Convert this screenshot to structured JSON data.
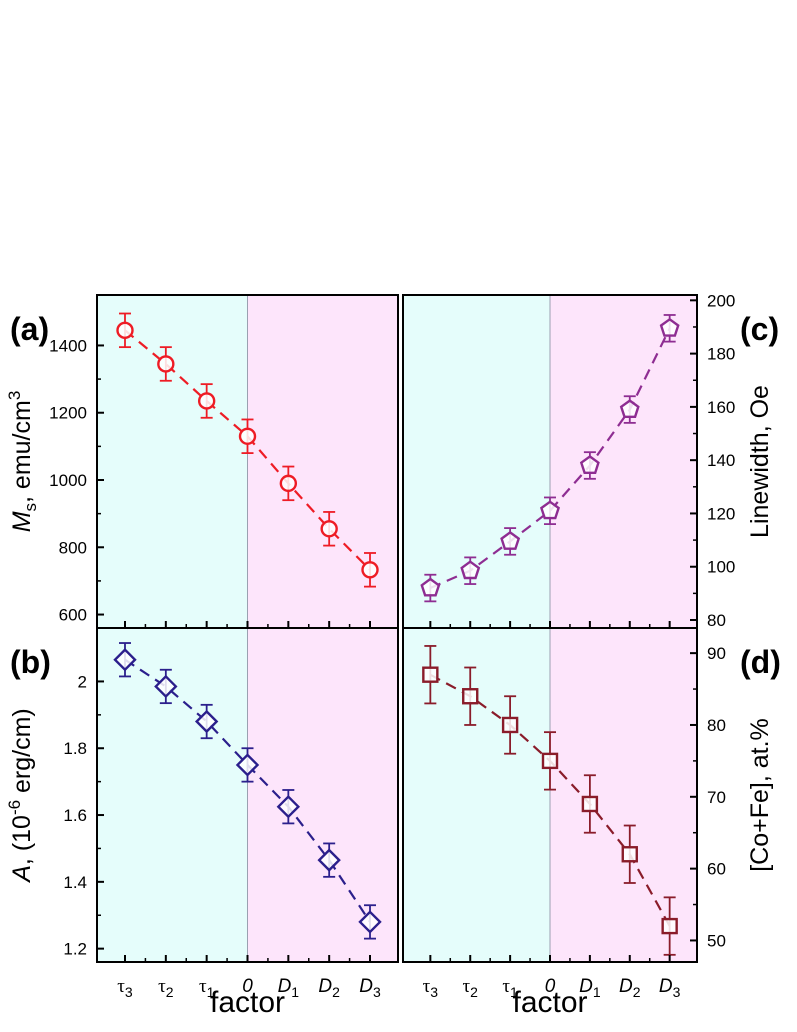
{
  "chart_data": [
    {
      "panel": "(a)",
      "type": "scatter",
      "x_categories": [
        "τ3",
        "τ2",
        "τ1",
        "0",
        "D1",
        "D2",
        "D3"
      ],
      "xlabel": "",
      "ylabel": "M_s, emu/cm^3",
      "ylim": [
        560,
        1550
      ],
      "yticks": [
        600,
        800,
        1000,
        1200,
        1400
      ],
      "series": [
        {
          "values": [
            1445,
            1345,
            1235,
            1130,
            990,
            855,
            733
          ],
          "errors": [
            50,
            50,
            50,
            50,
            50,
            50,
            50
          ]
        }
      ],
      "marker": "circle",
      "color": "#ee1c25",
      "regions": [
        {
          "from": "τ3",
          "to": "0",
          "color": "#e5fdfb"
        },
        {
          "from": "0",
          "to": "D3",
          "color": "#fde5fb"
        }
      ]
    },
    {
      "panel": "(b)",
      "type": "scatter",
      "x_categories": [
        "τ3",
        "τ2",
        "τ1",
        "0",
        "D1",
        "D2",
        "D3"
      ],
      "xlabel": "factor",
      "ylabel": "A, (10^-6 erg/cm)",
      "ylim": [
        1.16,
        2.16
      ],
      "yticks": [
        1.2,
        1.4,
        1.6,
        1.8,
        2.0
      ],
      "series": [
        {
          "values": [
            2.065,
            1.985,
            1.88,
            1.75,
            1.625,
            1.465,
            1.28
          ],
          "errors": [
            0.05,
            0.05,
            0.05,
            0.05,
            0.05,
            0.05,
            0.05
          ]
        }
      ],
      "marker": "diamond",
      "color": "#2b1f8c",
      "regions": [
        {
          "from": "τ3",
          "to": "0",
          "color": "#e5fdfb"
        },
        {
          "from": "0",
          "to": "D3",
          "color": "#fde5fb"
        }
      ]
    },
    {
      "panel": "(c)",
      "type": "scatter",
      "x_categories": [
        "τ3",
        "τ2",
        "τ1",
        "0",
        "D1",
        "D2",
        "D3"
      ],
      "xlabel": "",
      "ylabel": "Linewidth, Oe",
      "ylim": [
        77,
        202
      ],
      "yticks": [
        80,
        100,
        120,
        140,
        160,
        180,
        200
      ],
      "series": [
        {
          "values": [
            92,
            98.5,
            109.5,
            121,
            138,
            159,
            189.5
          ],
          "errors": [
            5,
            5,
            5,
            5,
            5,
            5,
            5
          ]
        }
      ],
      "marker": "pentagon",
      "color": "#8e2d92",
      "regions": [
        {
          "from": "τ3",
          "to": "0",
          "color": "#e5fdfb"
        },
        {
          "from": "0",
          "to": "D3",
          "color": "#fde5fb"
        }
      ]
    },
    {
      "panel": "(d)",
      "type": "scatter",
      "x_categories": [
        "τ3",
        "τ2",
        "τ1",
        "0",
        "D1",
        "D2",
        "D3"
      ],
      "xlabel": "factor",
      "ylabel": "[Co+Fe], at.%",
      "ylim": [
        47,
        93.5
      ],
      "yticks": [
        50,
        60,
        70,
        80,
        90
      ],
      "series": [
        {
          "values": [
            87,
            84,
            80,
            75,
            69,
            62,
            52
          ],
          "errors": [
            4,
            4,
            4,
            4,
            4,
            4,
            4
          ]
        }
      ],
      "marker": "square",
      "color": "#8a1c2a",
      "regions": [
        {
          "from": "τ3",
          "to": "0",
          "color": "#e5fdfb"
        },
        {
          "from": "0",
          "to": "D3",
          "color": "#fde5fb"
        }
      ]
    }
  ]
}
